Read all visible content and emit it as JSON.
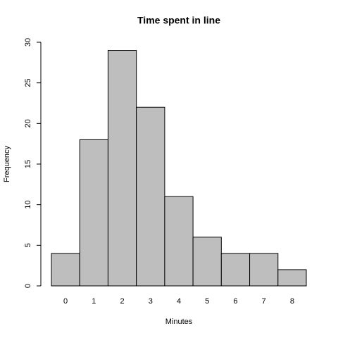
{
  "chart_data": {
    "type": "bar",
    "title": "Time spent in line",
    "x_label": "Minutes",
    "y_label": "Frequency",
    "categories": [
      "0",
      "1",
      "2",
      "3",
      "4",
      "5",
      "6",
      "7",
      "8"
    ],
    "values": [
      4,
      18,
      29,
      22,
      11,
      6,
      4,
      4,
      2
    ],
    "color": "#bebebe",
    "ylim": [
      0,
      30
    ],
    "yticks": [
      0,
      5,
      10,
      15,
      20,
      25,
      30
    ],
    "grid": false
  }
}
